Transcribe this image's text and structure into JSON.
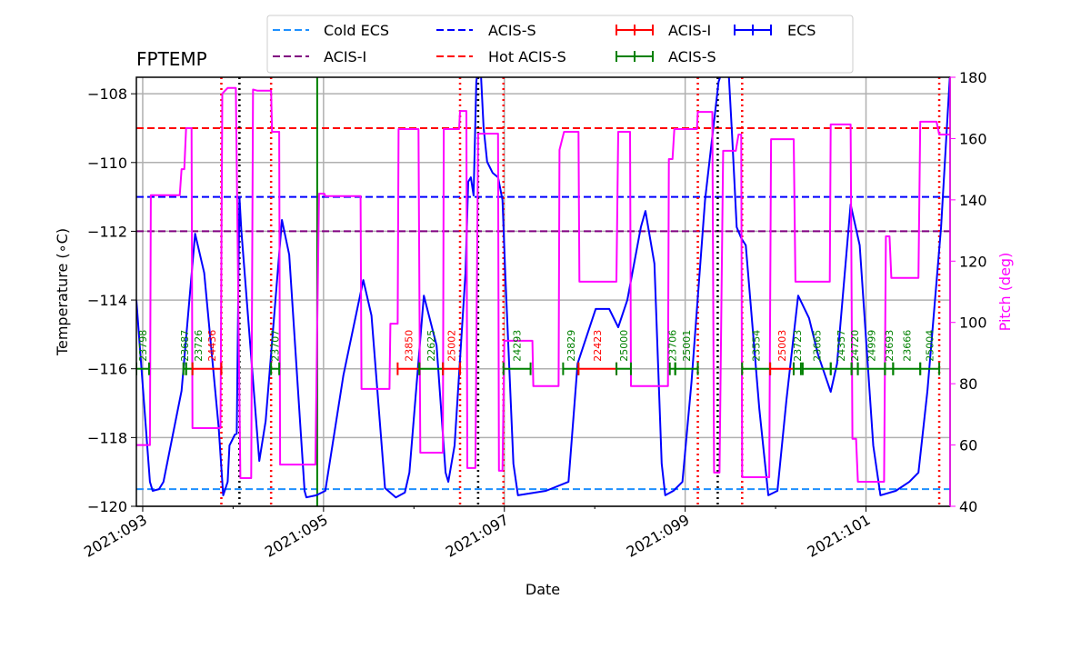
{
  "chart_data": {
    "type": "line",
    "title": "FPTEMP",
    "xlabel": "Date",
    "ylabel": "Temperature ($^\\circ$C)",
    "ylabel_display": "Temperature (∘C)",
    "y2label": "Pitch (deg)",
    "xlim": [
      92.93,
      101.93
    ],
    "ylim": [
      -120,
      -107.52
    ],
    "y2lim": [
      40,
      180
    ],
    "grid": true,
    "legend_placement": "top-center, above plot",
    "x_ticks": [
      {
        "v": 93,
        "label": "2021:093"
      },
      {
        "v": 95,
        "label": "2021:095"
      },
      {
        "v": 97,
        "label": "2021:097"
      },
      {
        "v": 99,
        "label": "2021:099"
      },
      {
        "v": 101,
        "label": "2021:101"
      }
    ],
    "x_minor_ticks": [
      94,
      96,
      98,
      100
    ],
    "y_ticks": [
      -120,
      -118,
      -116,
      -114,
      -112,
      -110,
      -108
    ],
    "y2_ticks": [
      40,
      60,
      80,
      100,
      120,
      140,
      160,
      180
    ],
    "colors": {
      "pitch": "#ff00ff",
      "ecs": "#0000ff",
      "cold_ecs": "#1e90ff",
      "acis_s_limit": "#0000ff",
      "acis_i_limit": "#800080",
      "hot_acis_s": "#ff0000",
      "acis_i_obs": "#ff0000",
      "acis_s_obs": "#008000"
    },
    "legend": [
      {
        "label": "Cold ECS",
        "style": "dashed",
        "color": "#1e90ff"
      },
      {
        "label": "ACIS-I",
        "style": "dashed",
        "color": "#800080"
      },
      {
        "label": "ACIS-S",
        "style": "dashed",
        "color": "#0000ff"
      },
      {
        "label": "Hot ACIS-S",
        "style": "dashed",
        "color": "#ff0000"
      },
      {
        "label": "ACIS-I",
        "style": "errorbar",
        "color": "#ff0000"
      },
      {
        "label": "ACIS-S",
        "style": "errorbar",
        "color": "#008000"
      },
      {
        "label": "ECS",
        "style": "errorbar",
        "color": "#0000ff"
      }
    ],
    "limit_lines": [
      {
        "name": "Cold ECS",
        "value": -119.5,
        "color": "#1e90ff"
      },
      {
        "name": "ACIS-S",
        "value": -111,
        "color": "#0000ff"
      },
      {
        "name": "ACIS-I",
        "value": -112,
        "color": "#800080"
      },
      {
        "name": "Hot ACIS-S",
        "value": -109,
        "color": "#ff0000"
      }
    ],
    "vertical_lines": [
      {
        "x": 93.87,
        "color": "#ff0000",
        "style": "dotted"
      },
      {
        "x": 94.42,
        "color": "#ff0000",
        "style": "dotted"
      },
      {
        "x": 96.51,
        "color": "#ff0000",
        "style": "dotted"
      },
      {
        "x": 96.99,
        "color": "#ff0000",
        "style": "dotted"
      },
      {
        "x": 99.14,
        "color": "#ff0000",
        "style": "dotted"
      },
      {
        "x": 99.63,
        "color": "#ff0000",
        "style": "dotted"
      },
      {
        "x": 101.81,
        "color": "#ff0000",
        "style": "dotted"
      },
      {
        "x": 94.07,
        "color": "#000000",
        "style": "dotted"
      },
      {
        "x": 96.71,
        "color": "#000000",
        "style": "dotted"
      },
      {
        "x": 99.36,
        "color": "#000000",
        "style": "dotted"
      },
      {
        "x": 94.93,
        "color": "#008000",
        "style": "solid"
      }
    ],
    "observations": [
      {
        "obsid": "23798",
        "start": 92.93,
        "stop": 93.07,
        "instrument": "ACIS-S"
      },
      {
        "obsid": "23687",
        "start": 93.45,
        "stop": 93.48,
        "instrument": "ACIS-S"
      },
      {
        "obsid": "23726",
        "start": 93.48,
        "stop": 93.55,
        "instrument": "ACIS-S"
      },
      {
        "obsid": "24436",
        "start": 93.55,
        "stop": 93.87,
        "instrument": "ACIS-I"
      },
      {
        "obsid": "23707",
        "start": 94.42,
        "stop": 94.51,
        "instrument": "ACIS-S"
      },
      {
        "obsid": "23850",
        "start": 95.82,
        "stop": 96.06,
        "instrument": "ACIS-I"
      },
      {
        "obsid": "22625",
        "start": 96.06,
        "stop": 96.32,
        "instrument": "ACIS-S"
      },
      {
        "obsid": "25002",
        "start": 96.32,
        "stop": 96.51,
        "instrument": "ACIS-I"
      },
      {
        "obsid": "24293",
        "start": 96.99,
        "stop": 97.29,
        "instrument": "ACIS-S"
      },
      {
        "obsid": "23829",
        "start": 97.65,
        "stop": 97.82,
        "instrument": "ACIS-S"
      },
      {
        "obsid": "22423",
        "start": 97.82,
        "stop": 98.24,
        "instrument": "ACIS-I"
      },
      {
        "obsid": "25000",
        "start": 98.24,
        "stop": 98.4,
        "instrument": "ACIS-S"
      },
      {
        "obsid": "23706",
        "start": 98.83,
        "stop": 98.89,
        "instrument": "ACIS-S"
      },
      {
        "obsid": "25001",
        "start": 98.89,
        "stop": 99.14,
        "instrument": "ACIS-S"
      },
      {
        "obsid": "23554",
        "start": 99.63,
        "stop": 99.94,
        "instrument": "ACIS-S"
      },
      {
        "obsid": "25003",
        "start": 99.94,
        "stop": 100.2,
        "instrument": "ACIS-I"
      },
      {
        "obsid": "23723",
        "start": 100.2,
        "stop": 100.28,
        "instrument": "ACIS-S"
      },
      {
        "obsid": "23665",
        "start": 100.3,
        "stop": 100.61,
        "instrument": "ACIS-S"
      },
      {
        "obsid": "24357",
        "start": 100.61,
        "stop": 100.84,
        "instrument": "ACIS-S"
      },
      {
        "obsid": "24720",
        "start": 100.84,
        "stop": 100.91,
        "instrument": "ACIS-S"
      },
      {
        "obsid": "24999",
        "start": 100.91,
        "stop": 101.21,
        "instrument": "ACIS-S"
      },
      {
        "obsid": "23693",
        "start": 101.21,
        "stop": 101.3,
        "instrument": "ACIS-S"
      },
      {
        "obsid": "23666",
        "start": 101.3,
        "stop": 101.6,
        "instrument": "ACIS-S"
      },
      {
        "obsid": "25004",
        "start": 101.6,
        "stop": 101.81,
        "instrument": "ACIS-S"
      }
    ],
    "series": [
      {
        "name": "ECS",
        "axis": "left",
        "color": "#0000ff",
        "points": [
          [
            92.93,
            -114.0
          ],
          [
            93.08,
            -119.29
          ],
          [
            93.11,
            -119.55
          ],
          [
            93.18,
            -119.5
          ],
          [
            93.23,
            -119.29
          ],
          [
            93.43,
            -116.64
          ],
          [
            93.58,
            -112.07
          ],
          [
            93.68,
            -113.21
          ],
          [
            93.84,
            -117.7
          ],
          [
            93.89,
            -119.68
          ],
          [
            93.94,
            -119.29
          ],
          [
            93.96,
            -118.23
          ],
          [
            94.02,
            -117.91
          ],
          [
            94.04,
            -117.89
          ],
          [
            94.06,
            -113.02
          ],
          [
            94.07,
            -111.01
          ],
          [
            94.09,
            -111.96
          ],
          [
            94.29,
            -118.68
          ],
          [
            94.36,
            -117.52
          ],
          [
            94.54,
            -111.67
          ],
          [
            94.62,
            -112.68
          ],
          [
            94.79,
            -119.55
          ],
          [
            94.81,
            -119.74
          ],
          [
            94.92,
            -119.68
          ],
          [
            95.02,
            -119.55
          ],
          [
            95.22,
            -116.19
          ],
          [
            95.44,
            -113.42
          ],
          [
            95.53,
            -114.45
          ],
          [
            95.68,
            -119.47
          ],
          [
            95.8,
            -119.74
          ],
          [
            95.9,
            -119.6
          ],
          [
            95.95,
            -119.02
          ],
          [
            96.11,
            -113.87
          ],
          [
            96.25,
            -115.32
          ],
          [
            96.35,
            -119.02
          ],
          [
            96.38,
            -119.29
          ],
          [
            96.45,
            -118.23
          ],
          [
            96.57,
            -113.21
          ],
          [
            96.6,
            -110.56
          ],
          [
            96.63,
            -110.43
          ],
          [
            96.66,
            -110.96
          ],
          [
            96.69,
            -107.65
          ],
          [
            96.73,
            -106.86
          ],
          [
            96.77,
            -108.98
          ],
          [
            96.81,
            -109.98
          ],
          [
            96.87,
            -110.3
          ],
          [
            96.93,
            -110.43
          ],
          [
            96.98,
            -111.09
          ],
          [
            97.01,
            -113.21
          ],
          [
            97.1,
            -118.76
          ],
          [
            97.15,
            -119.68
          ],
          [
            97.46,
            -119.55
          ],
          [
            97.71,
            -119.29
          ],
          [
            97.81,
            -115.85
          ],
          [
            98.01,
            -114.26
          ],
          [
            98.16,
            -114.26
          ],
          [
            98.26,
            -114.79
          ],
          [
            98.36,
            -114.0
          ],
          [
            98.51,
            -111.88
          ],
          [
            98.56,
            -111.41
          ],
          [
            98.66,
            -112.94
          ],
          [
            98.74,
            -118.76
          ],
          [
            98.78,
            -119.68
          ],
          [
            98.87,
            -119.55
          ],
          [
            98.97,
            -119.29
          ],
          [
            99.07,
            -116.38
          ],
          [
            99.22,
            -111.09
          ],
          [
            99.37,
            -107.65
          ],
          [
            99.47,
            -106.86
          ],
          [
            99.52,
            -109.24
          ],
          [
            99.57,
            -111.88
          ],
          [
            99.62,
            -112.2
          ],
          [
            99.67,
            -112.41
          ],
          [
            99.82,
            -117.17
          ],
          [
            99.92,
            -119.68
          ],
          [
            100.02,
            -119.55
          ],
          [
            100.12,
            -116.91
          ],
          [
            100.25,
            -113.87
          ],
          [
            100.37,
            -114.53
          ],
          [
            100.47,
            -115.59
          ],
          [
            100.61,
            -116.67
          ],
          [
            100.68,
            -115.85
          ],
          [
            100.83,
            -111.22
          ],
          [
            100.93,
            -112.41
          ],
          [
            101.08,
            -118.23
          ],
          [
            101.16,
            -119.68
          ],
          [
            101.33,
            -119.55
          ],
          [
            101.48,
            -119.29
          ],
          [
            101.58,
            -119.02
          ],
          [
            101.68,
            -116.64
          ],
          [
            101.83,
            -111.88
          ],
          [
            101.93,
            -107.39
          ]
        ]
      },
      {
        "name": "Pitch",
        "axis": "right",
        "color": "#ff00ff",
        "points": [
          [
            92.93,
            60
          ],
          [
            93.08,
            60
          ],
          [
            93.09,
            141.5
          ],
          [
            93.41,
            141.5
          ],
          [
            93.43,
            150
          ],
          [
            93.46,
            150
          ],
          [
            93.48,
            163.4
          ],
          [
            93.54,
            163.4
          ],
          [
            93.55,
            65.5
          ],
          [
            93.86,
            65.5
          ],
          [
            93.88,
            174.7
          ],
          [
            93.94,
            176.5
          ],
          [
            94.03,
            176.5
          ],
          [
            94.08,
            49.2
          ],
          [
            94.2,
            49.2
          ],
          [
            94.22,
            176
          ],
          [
            94.27,
            175.6
          ],
          [
            94.42,
            175.6
          ],
          [
            94.43,
            162.2
          ],
          [
            94.51,
            162.2
          ],
          [
            94.52,
            53.6
          ],
          [
            94.91,
            53.6
          ],
          [
            94.95,
            142
          ],
          [
            95.01,
            142
          ],
          [
            95.02,
            141.2
          ],
          [
            95.41,
            141.2
          ],
          [
            95.42,
            78.3
          ],
          [
            95.73,
            78.3
          ],
          [
            95.74,
            99.6
          ],
          [
            95.82,
            99.6
          ],
          [
            95.83,
            163.1
          ],
          [
            96.05,
            163.1
          ],
          [
            96.07,
            57.5
          ],
          [
            96.32,
            57.5
          ],
          [
            96.33,
            163.1
          ],
          [
            96.5,
            163.1
          ],
          [
            96.51,
            169
          ],
          [
            96.58,
            169
          ],
          [
            96.59,
            52.5
          ],
          [
            96.68,
            52.5
          ],
          [
            96.71,
            161.6
          ],
          [
            96.93,
            161.6
          ],
          [
            96.94,
            51.6
          ],
          [
            96.98,
            51.6
          ],
          [
            97.0,
            94
          ],
          [
            97.31,
            94
          ],
          [
            97.32,
            79.2
          ],
          [
            97.6,
            79.2
          ],
          [
            97.61,
            156.3
          ],
          [
            97.66,
            162.2
          ],
          [
            97.82,
            162.2
          ],
          [
            97.83,
            113.3
          ],
          [
            98.24,
            113.3
          ],
          [
            98.26,
            162.2
          ],
          [
            98.39,
            162.2
          ],
          [
            98.4,
            79.2
          ],
          [
            98.81,
            79.2
          ],
          [
            98.82,
            153.3
          ],
          [
            98.86,
            153.3
          ],
          [
            98.88,
            163.1
          ],
          [
            99.13,
            163.1
          ],
          [
            99.14,
            168.7
          ],
          [
            99.3,
            168.7
          ],
          [
            99.32,
            51
          ],
          [
            99.38,
            51
          ],
          [
            99.42,
            156
          ],
          [
            99.56,
            156
          ],
          [
            99.59,
            161.3
          ],
          [
            99.62,
            161.3
          ],
          [
            99.63,
            49.5
          ],
          [
            99.93,
            49.5
          ],
          [
            99.95,
            159.8
          ],
          [
            100.2,
            159.8
          ],
          [
            100.22,
            113.3
          ],
          [
            100.6,
            113.3
          ],
          [
            100.61,
            164.6
          ],
          [
            100.83,
            164.6
          ],
          [
            100.85,
            62
          ],
          [
            100.89,
            62
          ],
          [
            100.91,
            48
          ],
          [
            101.2,
            48
          ],
          [
            101.22,
            128.1
          ],
          [
            101.26,
            128.1
          ],
          [
            101.28,
            114.5
          ],
          [
            101.58,
            114.5
          ],
          [
            101.6,
            165.5
          ],
          [
            101.78,
            165.5
          ],
          [
            101.81,
            161.3
          ],
          [
            101.93,
            161.3
          ]
        ]
      }
    ]
  }
}
